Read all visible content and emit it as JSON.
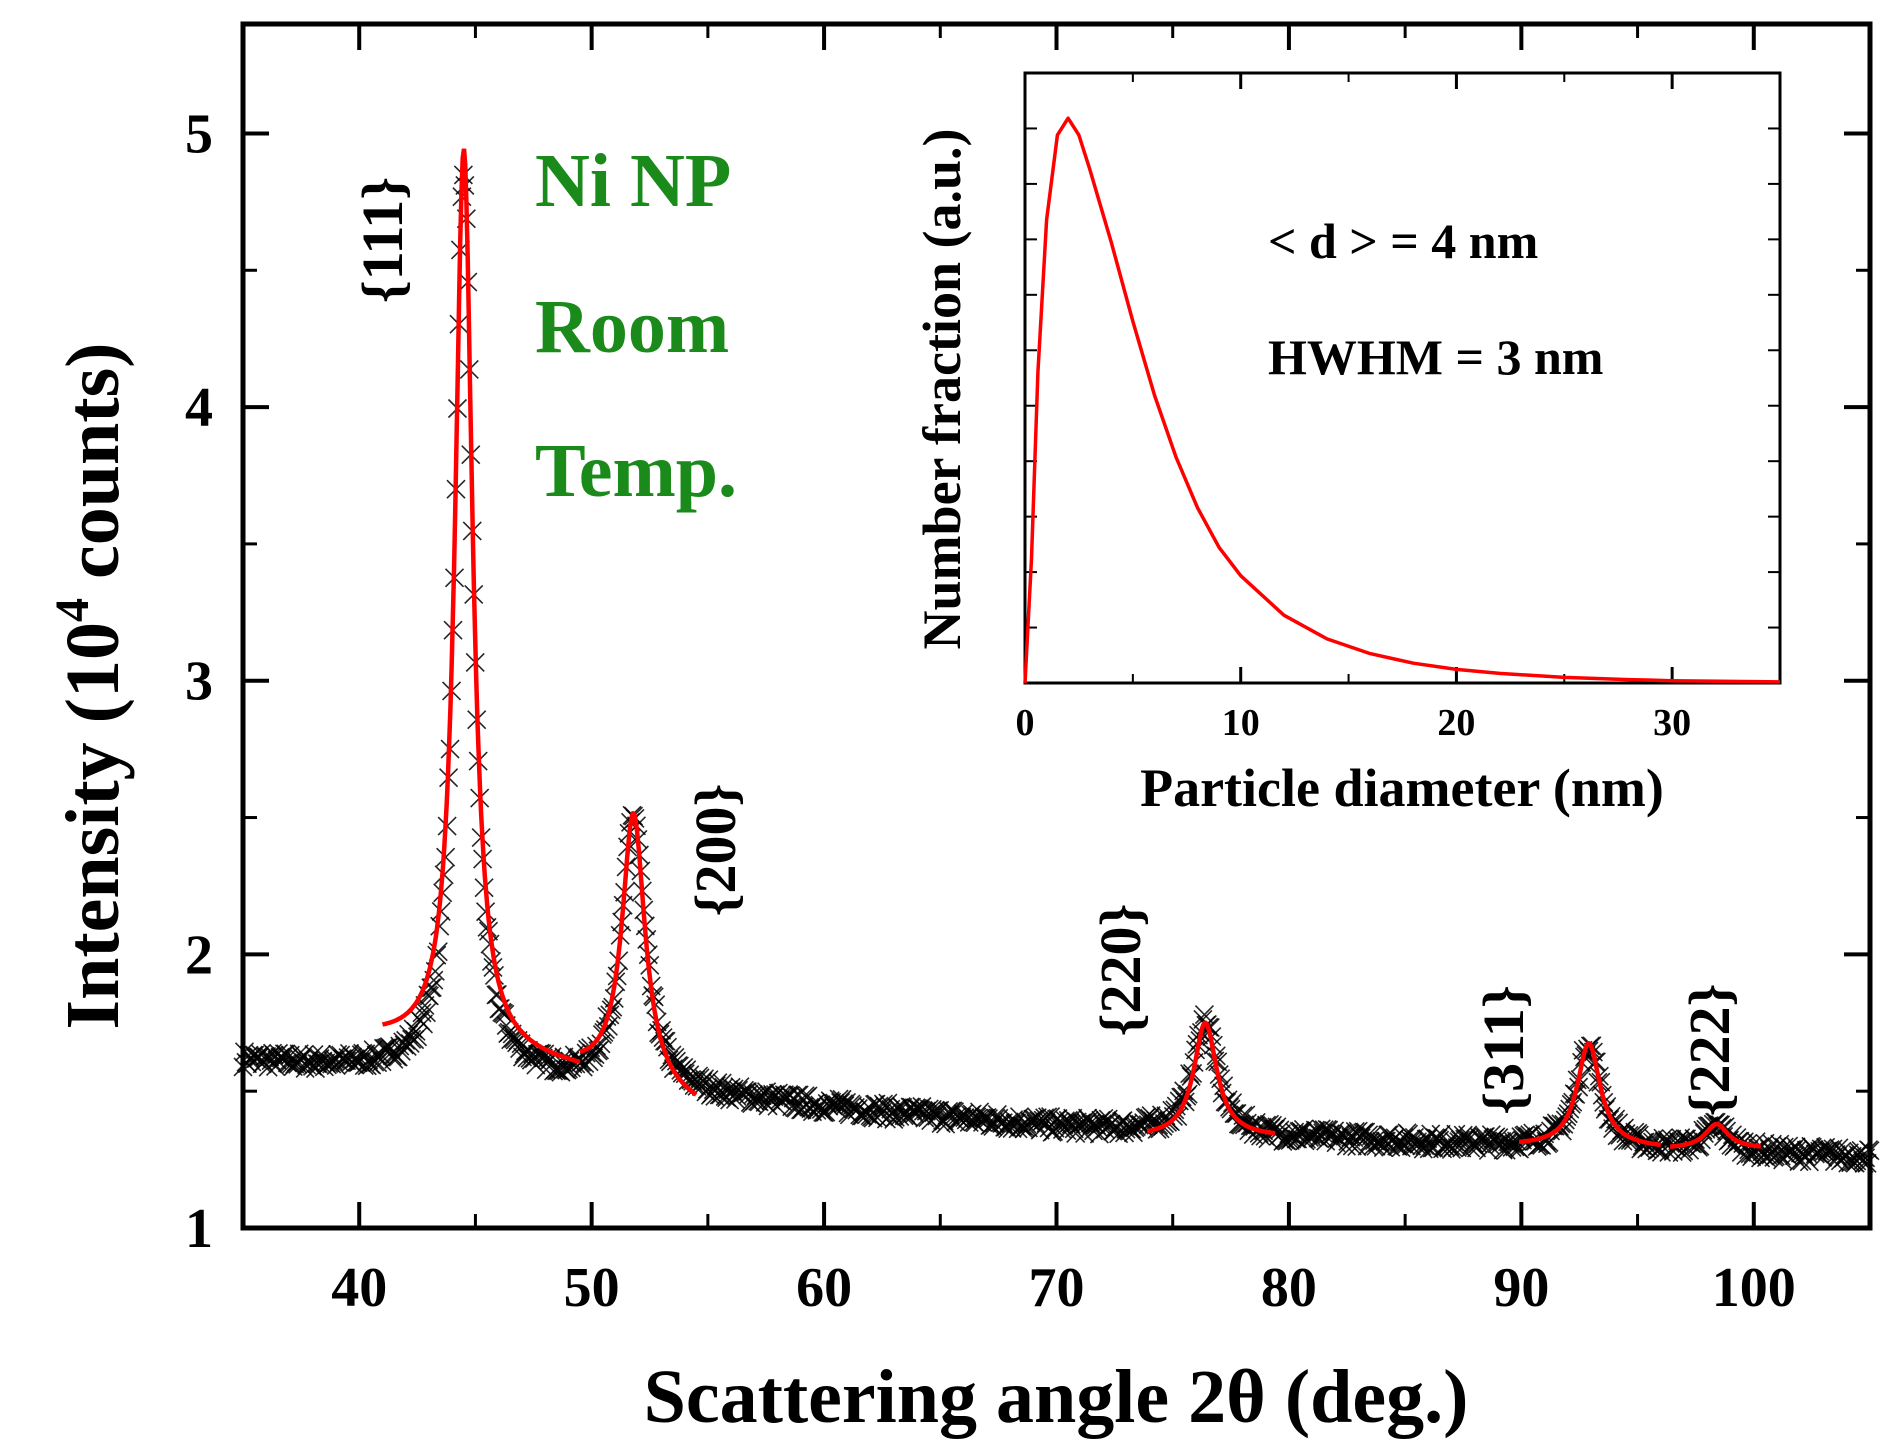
{
  "chart_data": [
    {
      "type": "scatter",
      "title": "",
      "xlabel": "Scattering angle 2θ (deg.)",
      "ylabel_main": "Intensity (10",
      "ylabel_sup": "4",
      "ylabel_tail": " counts)",
      "xlim": [
        35,
        105
      ],
      "ylim": [
        1,
        5.4
      ],
      "xticks": [
        40,
        50,
        60,
        70,
        80,
        90,
        100
      ],
      "yticks": [
        1,
        2,
        3,
        4,
        5
      ],
      "annotation_lines": [
        "Ni NP",
        "Room",
        "Temp."
      ],
      "annotation_color": "#1a8a1a",
      "peak_labels": [
        {
          "label": "{111}",
          "x": 44.5
        },
        {
          "label": "{200}",
          "x": 51.8
        },
        {
          "label": "{220}",
          "x": 76.4
        },
        {
          "label": "{311}",
          "x": 92.9
        },
        {
          "label": "{222}",
          "x": 98.4
        }
      ],
      "series": [
        {
          "kind": "measured",
          "marker": "x",
          "color": "#000000",
          "background": {
            "x": [
              35,
              48,
              60,
              70,
              80,
              90,
              105
            ],
            "y": [
              1.61,
              1.53,
              1.44,
              1.37,
              1.33,
              1.3,
              1.26
            ]
          },
          "peaks": [
            {
              "center": 44.5,
              "height": 3.3,
              "hwhm": 0.45
            },
            {
              "center": 51.8,
              "height": 1.0,
              "hwhm": 0.6
            },
            {
              "center": 76.4,
              "height": 0.42,
              "hwhm": 0.6
            },
            {
              "center": 92.9,
              "height": 0.38,
              "hwhm": 0.6
            },
            {
              "center": 98.4,
              "height": 0.09,
              "hwhm": 0.6
            }
          ]
        },
        {
          "kind": "fit",
          "color": "#ff0000",
          "segments": [
            {
              "x": [
                41,
                49.5
              ],
              "peak": 0,
              "bg": [
                1.69,
                1.58
              ]
            },
            {
              "x": [
                49.5,
                54.5
              ],
              "peak": 1,
              "bg": [
                1.58,
                1.44
              ]
            },
            {
              "x": [
                73.9,
                79.4
              ],
              "peak": 2,
              "bg": [
                1.33,
                1.33
              ]
            },
            {
              "x": [
                89.9,
                96.0
              ],
              "peak": 3,
              "bg": [
                1.3,
                1.29
              ]
            },
            {
              "x": [
                96.4,
                100.3
              ],
              "peak": 4,
              "bg": [
                1.29,
                1.29
              ]
            }
          ]
        }
      ]
    },
    {
      "type": "line",
      "title": "",
      "xlabel": "Particle diameter (nm)",
      "ylabel": "Number fraction (a.u.)",
      "xlim": [
        0,
        35
      ],
      "ylim": [
        0,
        1.08
      ],
      "xticks": [
        0,
        10,
        20,
        30
      ],
      "yticks_count": 10,
      "annotation_lines": [
        "< d > = 4 nm",
        "HWHM = 3 nm"
      ],
      "series": [
        {
          "color": "#ff0000",
          "x": [
            0,
            0.3,
            0.6,
            1.0,
            1.5,
            2.0,
            2.5,
            3,
            4,
            5,
            6,
            7,
            8,
            9,
            10,
            12,
            14,
            16,
            18,
            20,
            22,
            25,
            28,
            30,
            35
          ],
          "y": [
            0,
            0.22,
            0.55,
            0.82,
            0.97,
            1.0,
            0.97,
            0.91,
            0.78,
            0.64,
            0.51,
            0.4,
            0.31,
            0.24,
            0.19,
            0.12,
            0.078,
            0.052,
            0.035,
            0.024,
            0.017,
            0.01,
            0.006,
            0.004,
            0.002
          ]
        }
      ]
    }
  ]
}
